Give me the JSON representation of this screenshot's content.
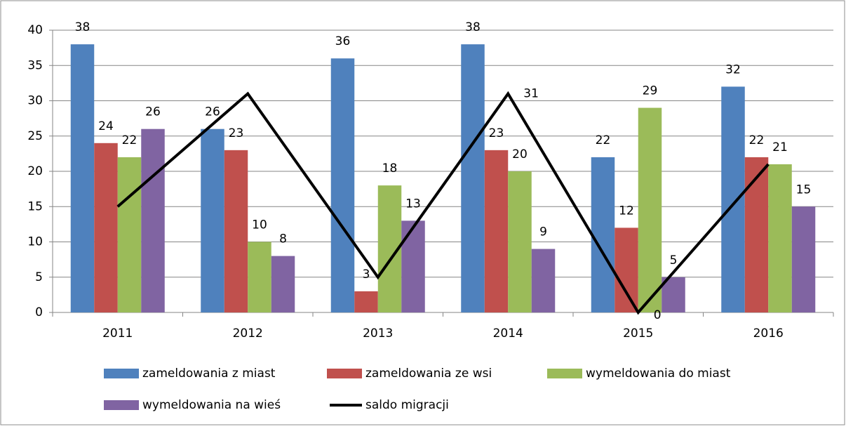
{
  "chart_data": {
    "type": "bar",
    "categories": [
      "2011",
      "2012",
      "2013",
      "2014",
      "2015",
      "2016"
    ],
    "ylim": [
      0,
      40
    ],
    "yticks": [
      0,
      5,
      10,
      15,
      20,
      25,
      30,
      35,
      40
    ],
    "grid": true,
    "legend": "bottom",
    "series": [
      {
        "name": "zameldowania z miast",
        "type": "bar",
        "color": "#4f81bd",
        "values": [
          38,
          26,
          36,
          38,
          22,
          32
        ]
      },
      {
        "name": "zameldowania ze wsi",
        "type": "bar",
        "color": "#c0504d",
        "values": [
          24,
          23,
          3,
          23,
          12,
          22
        ]
      },
      {
        "name": "wymeldowania do miast",
        "type": "bar",
        "color": "#9bbb59",
        "values": [
          22,
          10,
          18,
          20,
          29,
          21
        ]
      },
      {
        "name": "wymeldowania na wieś",
        "type": "bar",
        "color": "#8064a2",
        "values": [
          26,
          8,
          13,
          9,
          5,
          15
        ]
      },
      {
        "name": "saldo migracji",
        "type": "line",
        "color": "#000000",
        "values": [
          15,
          31,
          5,
          31,
          0,
          21
        ],
        "value_labels": [
          null,
          null,
          null,
          "31",
          "0",
          null
        ]
      }
    ]
  }
}
